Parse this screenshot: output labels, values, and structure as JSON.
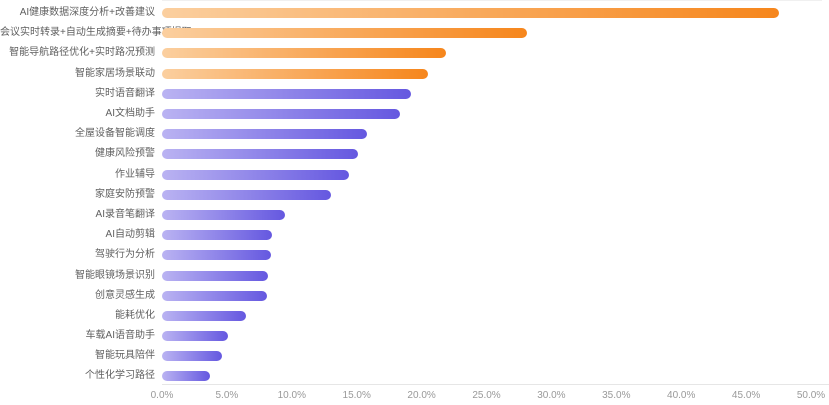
{
  "chart_data": {
    "type": "bar",
    "orientation": "horizontal",
    "title": "",
    "xlabel": "",
    "ylabel": "",
    "legend": false,
    "grid": false,
    "xlim": [
      0,
      50
    ],
    "x_tick_step": 5,
    "x_ticks": [
      "0.0%",
      "5.0%",
      "10.0%",
      "15.0%",
      "20.0%",
      "25.0%",
      "30.0%",
      "35.0%",
      "40.0%",
      "45.0%",
      "50.0%"
    ],
    "categories": [
      "AI健康数据深度分析+改善建议",
      "会议实时转录+自动生成摘要+待办事项提取",
      "智能导航路径优化+实时路况预测",
      "智能家居场景联动",
      "实时语音翻译",
      "AI文档助手",
      "全屋设备智能调度",
      "健康风险预警",
      "作业辅导",
      "家庭安防预警",
      "AI录音笔翻译",
      "AI自动剪辑",
      "驾驶行为分析",
      "智能眼镜场景识别",
      "创意灵感生成",
      "能耗优化",
      "车载AI语音助手",
      "智能玩具陪伴",
      "个性化学习路径"
    ],
    "values": [
      47.5,
      28.1,
      21.9,
      20.5,
      19.2,
      18.3,
      15.8,
      15.1,
      14.4,
      13.0,
      9.5,
      8.5,
      8.4,
      8.2,
      8.1,
      6.5,
      5.1,
      4.6,
      3.7
    ],
    "value_unit": "%",
    "highlight_first_n": 4,
    "bar_colors": {
      "highlight_gradient_start": "#FBCF9F",
      "highlight_gradient_end": "#F6861C",
      "normal_gradient_start": "#BAB3F2",
      "normal_gradient_end": "#6558E0"
    }
  },
  "colors": {
    "background": "#ffffff",
    "label_text": "#5f5f5f",
    "tick_text": "#999999",
    "axis_line": "#e6e6e6",
    "top_gridline": "#f0f0f0"
  }
}
